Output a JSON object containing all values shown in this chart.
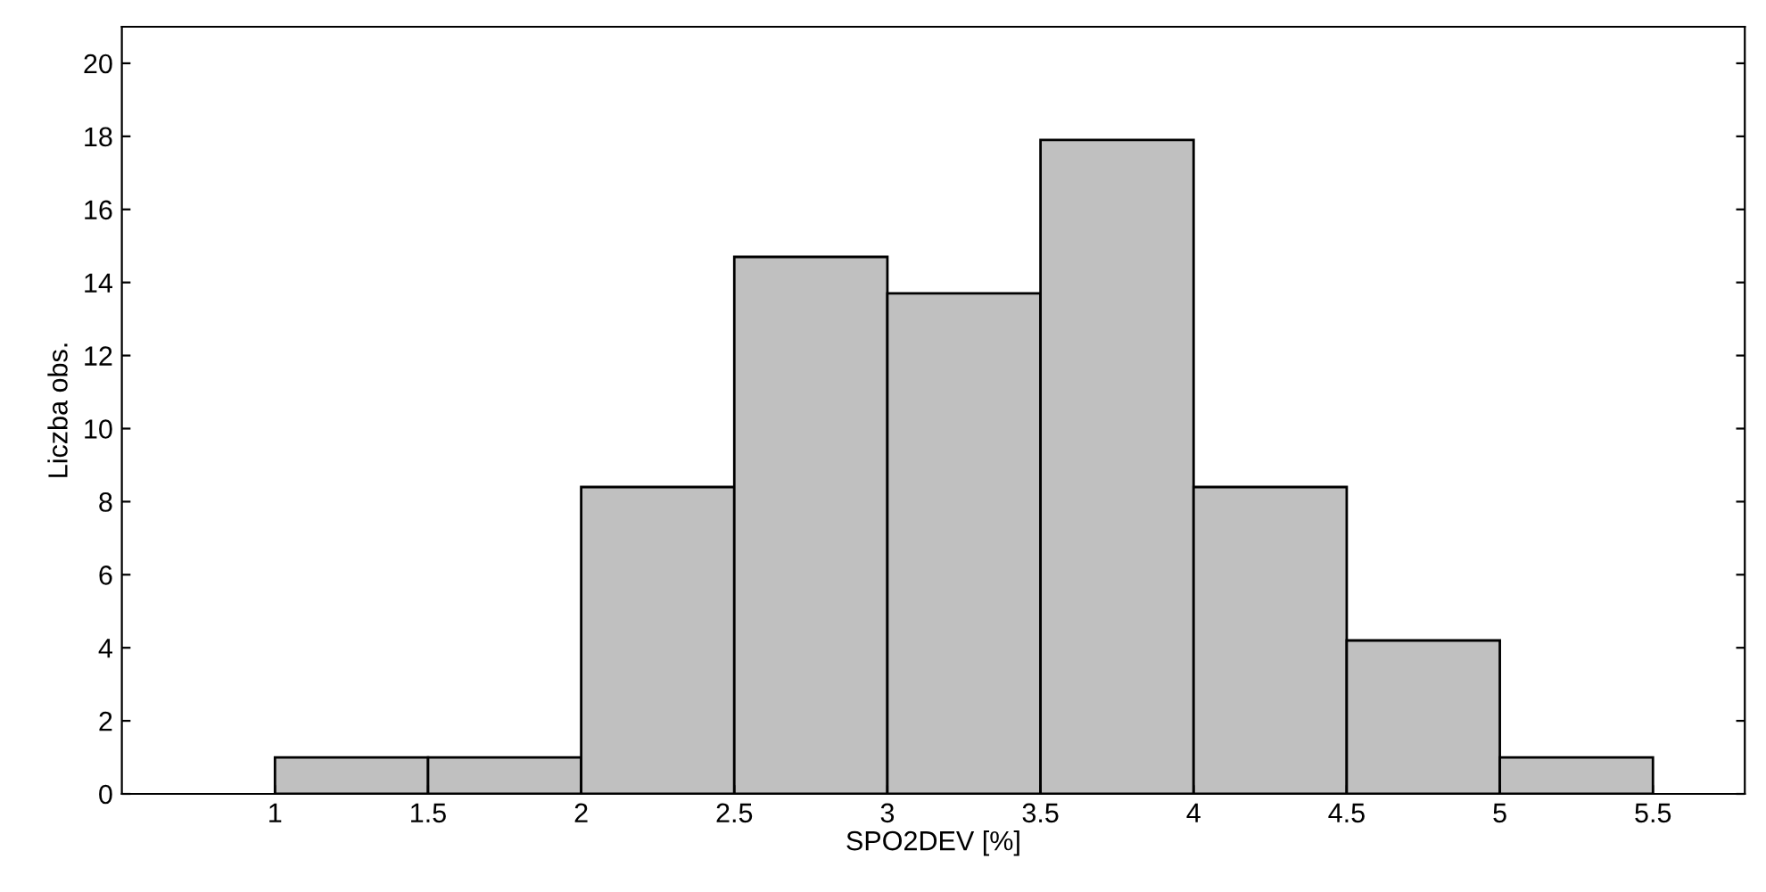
{
  "chart_data": {
    "type": "histogram",
    "xlabel": "SPO2DEV [%]",
    "ylabel": "Liczba obs.",
    "bins": [
      1,
      1.5,
      2,
      2.5,
      3,
      3.5,
      4,
      4.5,
      5,
      5.5
    ],
    "values": [
      1,
      1,
      8.4,
      14.7,
      13.7,
      17.9,
      8.4,
      4.2,
      1
    ],
    "color": "#c0c0c0",
    "xlim": [
      0.5,
      5.8
    ],
    "xticks": [
      1,
      1.5,
      2,
      2.5,
      3,
      3.5,
      4,
      4.5,
      5,
      5.5
    ],
    "ylim": [
      0,
      21
    ],
    "yticks": [
      0,
      2,
      4,
      6,
      8,
      10,
      12,
      14,
      16,
      18,
      20
    ],
    "grid": false
  }
}
